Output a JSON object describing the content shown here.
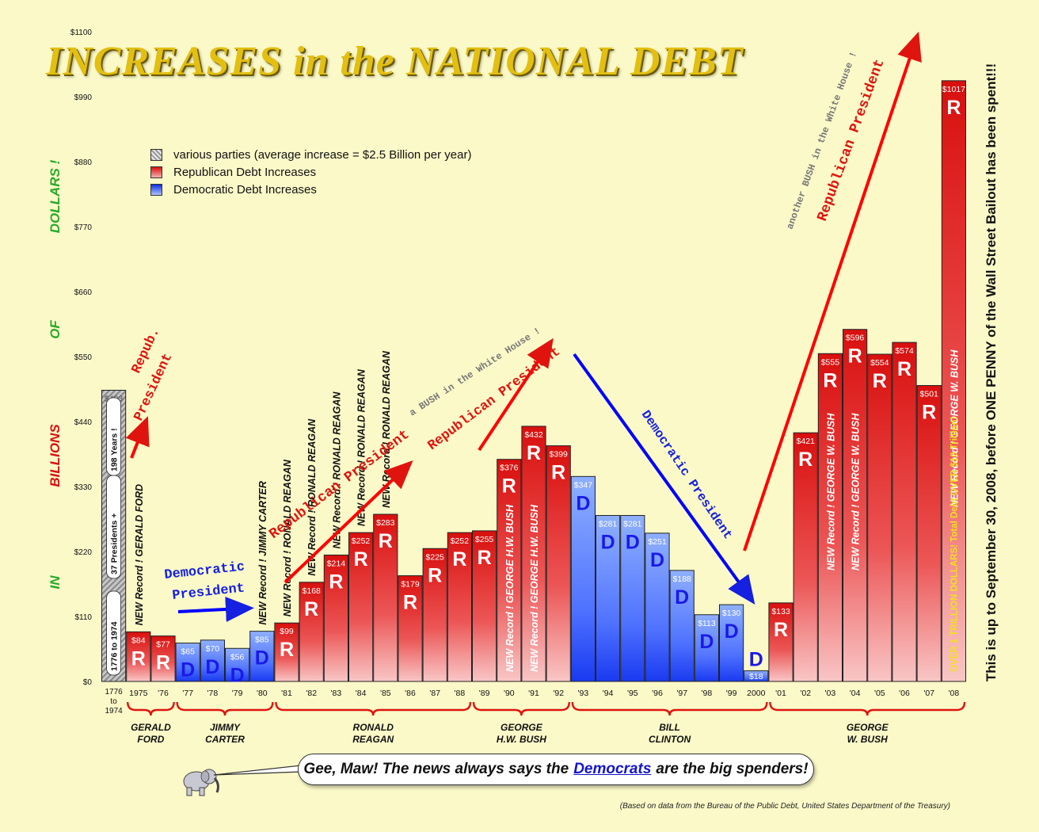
{
  "title": "INCREASES in the NATIONAL DEBT",
  "legend": {
    "various": "various parties (average increase = $2.5 Billion per year)",
    "republican": "Republican Debt Increases",
    "democratic": "Democratic Debt Increases"
  },
  "axis_words": {
    "in": "IN",
    "billions": "BILLIONS",
    "of": "OF",
    "dollars": "DOLLARS !"
  },
  "side_note": "This is up to September 30, 2008, before ONE PENNY of the Wall Street Bailout has been spent!!!",
  "bubble": {
    "before": "Gee, Maw! The news always says the",
    "link": "Democrats",
    "after": "are the big spenders!"
  },
  "source": "(Based on data from the Bureau of the Public Debt, United States Department of the Treasury)",
  "colors": {
    "background": "#fbf9c8",
    "republican": "#d8100e",
    "democratic": "#1030e0",
    "various": "#8a8a8a",
    "gridtext": "#111111"
  },
  "chart_data": {
    "type": "bar",
    "ylim": [
      0,
      1100
    ],
    "yticks": [
      "$0",
      "$110",
      "$220",
      "$330",
      "$440",
      "$550",
      "$660",
      "$770",
      "$880",
      "$990",
      "$1100"
    ],
    "ytick_values": [
      0,
      110,
      220,
      330,
      440,
      550,
      660,
      770,
      880,
      990,
      1100
    ],
    "bars": [
      {
        "cat": "1776 to 1974",
        "value": 493,
        "label": "$493",
        "party": "various",
        "letter": "",
        "note": ""
      },
      {
        "cat": "1975",
        "value": 84,
        "label": "$84",
        "party": "R",
        "letter": "R",
        "note": "NEW Record ! GERALD FORD"
      },
      {
        "cat": "'76",
        "value": 77,
        "label": "$77",
        "party": "R",
        "letter": "R",
        "note": ""
      },
      {
        "cat": "'77",
        "value": 65,
        "label": "$65",
        "party": "D",
        "letter": "D",
        "note": ""
      },
      {
        "cat": "'78",
        "value": 70,
        "label": "$70",
        "party": "D",
        "letter": "D",
        "note": ""
      },
      {
        "cat": "'79",
        "value": 56,
        "label": "$56",
        "party": "D",
        "letter": "D",
        "note": ""
      },
      {
        "cat": "'80",
        "value": 85,
        "label": "$85",
        "party": "D",
        "letter": "D",
        "note": "NEW Record ! JIMMY CARTER"
      },
      {
        "cat": "'81",
        "value": 99,
        "label": "$99",
        "party": "R",
        "letter": "R",
        "note": "NEW Record ! RONALD REAGAN"
      },
      {
        "cat": "'82",
        "value": 168,
        "label": "$168",
        "party": "R",
        "letter": "R",
        "note": "NEW Record ! RONALD REAGAN"
      },
      {
        "cat": "'83",
        "value": 214,
        "label": "$214",
        "party": "R",
        "letter": "R",
        "note": "NEW Record ! RONALD REAGAN"
      },
      {
        "cat": "'84",
        "value": 252,
        "label": "$252",
        "party": "R",
        "letter": "R",
        "note": "NEW Record ! RONALD REAGAN"
      },
      {
        "cat": "'85",
        "value": 283,
        "label": "$283",
        "party": "R",
        "letter": "R",
        "note": "NEW Record ! RONALD REAGAN"
      },
      {
        "cat": "'86",
        "value": 179,
        "label": "$179",
        "party": "R",
        "letter": "R",
        "note": ""
      },
      {
        "cat": "'87",
        "value": 225,
        "label": "$225",
        "party": "R",
        "letter": "R",
        "note": ""
      },
      {
        "cat": "'88",
        "value": 252,
        "label": "$252",
        "party": "R",
        "letter": "R",
        "note": ""
      },
      {
        "cat": "'89",
        "value": 255,
        "label": "$255",
        "party": "R",
        "letter": "R",
        "note": ""
      },
      {
        "cat": "'90",
        "value": 376,
        "label": "$376",
        "party": "R",
        "letter": "R",
        "note": "NEW Record ! GEORGE H.W. BUSH"
      },
      {
        "cat": "'91",
        "value": 432,
        "label": "$432",
        "party": "R",
        "letter": "R",
        "note": "NEW Record ! GEORGE H.W. BUSH"
      },
      {
        "cat": "'92",
        "value": 399,
        "label": "$399",
        "party": "R",
        "letter": "R",
        "note": ""
      },
      {
        "cat": "'93",
        "value": 347,
        "label": "$347",
        "party": "D",
        "letter": "D",
        "note": ""
      },
      {
        "cat": "'94",
        "value": 281,
        "label": "$281",
        "party": "D",
        "letter": "D",
        "note": ""
      },
      {
        "cat": "'95",
        "value": 281,
        "label": "$281",
        "party": "D",
        "letter": "D",
        "note": ""
      },
      {
        "cat": "'96",
        "value": 251,
        "label": "$251",
        "party": "D",
        "letter": "D",
        "note": ""
      },
      {
        "cat": "'97",
        "value": 188,
        "label": "$188",
        "party": "D",
        "letter": "D",
        "note": ""
      },
      {
        "cat": "'98",
        "value": 113,
        "label": "$113",
        "party": "D",
        "letter": "D",
        "note": ""
      },
      {
        "cat": "'99",
        "value": 130,
        "label": "$130",
        "party": "D",
        "letter": "D",
        "note": ""
      },
      {
        "cat": "2000",
        "value": 18,
        "label": "$18",
        "party": "D",
        "letter": "D",
        "note": ""
      },
      {
        "cat": "'01",
        "value": 133,
        "label": "$133",
        "party": "R",
        "letter": "R",
        "note": ""
      },
      {
        "cat": "'02",
        "value": 421,
        "label": "$421",
        "party": "R",
        "letter": "R",
        "note": ""
      },
      {
        "cat": "'03",
        "value": 555,
        "label": "$555",
        "party": "R",
        "letter": "R",
        "note": "NEW Record ! GEORGE W. BUSH"
      },
      {
        "cat": "'04",
        "value": 596,
        "label": "$596",
        "party": "R",
        "letter": "R",
        "note": "NEW Record ! GEORGE W. BUSH"
      },
      {
        "cat": "'05",
        "value": 554,
        "label": "$554",
        "party": "R",
        "letter": "R",
        "note": ""
      },
      {
        "cat": "'06",
        "value": 574,
        "label": "$574",
        "party": "R",
        "letter": "R",
        "note": ""
      },
      {
        "cat": "'07",
        "value": 501,
        "label": "$501",
        "party": "R",
        "letter": "R",
        "note": ""
      },
      {
        "cat": "'08",
        "value": 1017,
        "label": "$1017",
        "party": "R",
        "letter": "R",
        "note": "NEW Record ! GEORGE W. BUSH"
      }
    ],
    "first_bar_notes": [
      "1776 to 1974",
      "37 Presidents +",
      "198 Years !"
    ],
    "final_bar_note": "OVER 1 TRILLION DOLLARS! Total Debt OVER $10 Trillion!",
    "presidents": [
      {
        "name": [
          "GERALD",
          "FORD"
        ],
        "from": 1,
        "to": 2
      },
      {
        "name": [
          "JIMMY",
          "CARTER"
        ],
        "from": 3,
        "to": 6
      },
      {
        "name": [
          "RONALD",
          "REAGAN"
        ],
        "from": 7,
        "to": 14
      },
      {
        "name": [
          "GEORGE",
          "H.W. BUSH"
        ],
        "from": 15,
        "to": 18
      },
      {
        "name": [
          "BILL",
          "CLINTON"
        ],
        "from": 19,
        "to": 26
      },
      {
        "name": [
          "GEORGE",
          "W. BUSH"
        ],
        "from": 27,
        "to": 34
      }
    ],
    "annotations": {
      "repub_president_1": [
        "Repub.",
        "President"
      ],
      "democratic_president_1": [
        "Democratic",
        "President"
      ],
      "republican_president_reagan": "Republican President",
      "bush_white_house_1": "a BUSH in the White House !",
      "republican_president_bush1": "Republican President",
      "democratic_president_2": "Democratic President",
      "bush_white_house_2": "another BUSH in the White House !",
      "republican_president_bush2": "Republican President"
    }
  }
}
